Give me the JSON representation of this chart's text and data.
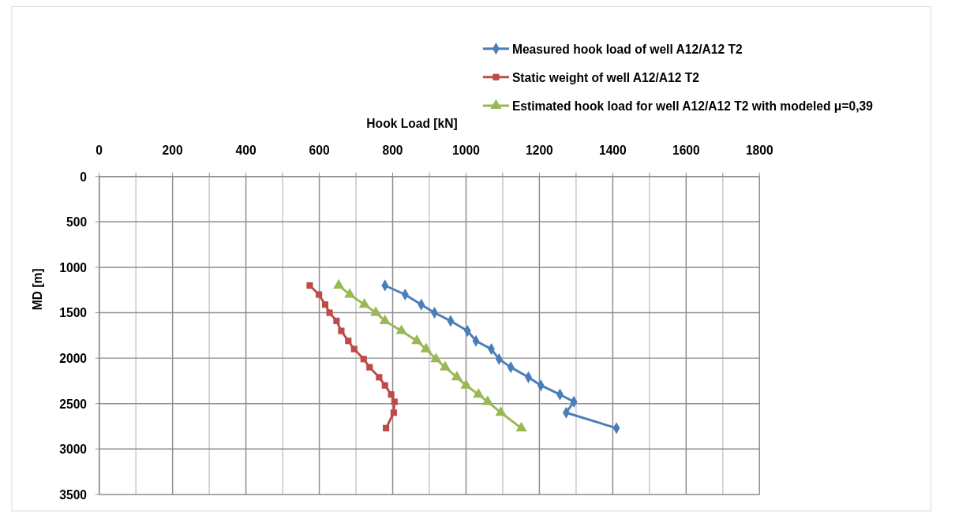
{
  "chart_data": {
    "type": "line",
    "xlabel": "Hook Load [kN]",
    "ylabel": "MD [m]",
    "xlim": [
      0,
      1800
    ],
    "ylim": [
      3500,
      0
    ],
    "xticks": [
      0,
      {
        "value": 100,
        "label": null
      },
      200,
      {
        "value": 300,
        "label": null
      },
      400,
      {
        "value": 500,
        "label": null
      },
      600,
      {
        "value": 700,
        "label": null
      },
      800,
      {
        "value": 900,
        "label": null
      },
      1000,
      {
        "value": 1100,
        "label": null
      },
      1200,
      {
        "value": 1300,
        "label": null
      },
      1400,
      {
        "value": 1500,
        "label": null
      },
      1600,
      {
        "value": 1700,
        "label": null
      },
      1800
    ],
    "yticks": [
      0,
      500,
      1000,
      1500,
      2000,
      2500,
      3000,
      3500
    ],
    "grid": true,
    "legend": "top right",
    "line_style": "solid",
    "series": [
      {
        "name": "Measured hook load of well A12/A12 T2",
        "color": "#4a7ebb",
        "marker": "diamond",
        "x": [
          779,
          834,
          878,
          914,
          958,
          1004,
          1027,
          1069,
          1090,
          1122,
          1170,
          1204,
          1256,
          1294,
          1273,
          1410
        ],
        "values": [
          1200,
          1300,
          1410,
          1500,
          1590,
          1700,
          1810,
          1900,
          2010,
          2100,
          2210,
          2300,
          2400,
          2480,
          2600,
          2770
        ]
      },
      {
        "name": "Static weight of well A12/A12 T2",
        "color": "#be4b48",
        "marker": "square",
        "x": [
          574,
          599,
          616,
          628,
          647,
          660,
          679,
          695,
          721,
          737,
          763,
          779,
          796,
          805,
          803,
          782
        ],
        "values": [
          1200,
          1300,
          1410,
          1500,
          1590,
          1700,
          1810,
          1900,
          2010,
          2100,
          2210,
          2300,
          2400,
          2480,
          2600,
          2770
        ]
      },
      {
        "name": "Estimated hook load for well A12/A12 T2 with modeled μ=0,39",
        "color": "#98b954",
        "marker": "triangle",
        "x": [
          653,
          683,
          723,
          754,
          779,
          824,
          866,
          891,
          918,
          943,
          975,
          1000,
          1034,
          1059,
          1095,
          1151
        ],
        "values": [
          1200,
          1300,
          1410,
          1500,
          1590,
          1700,
          1810,
          1900,
          2010,
          2100,
          2210,
          2300,
          2400,
          2480,
          2600,
          2770
        ]
      }
    ]
  }
}
